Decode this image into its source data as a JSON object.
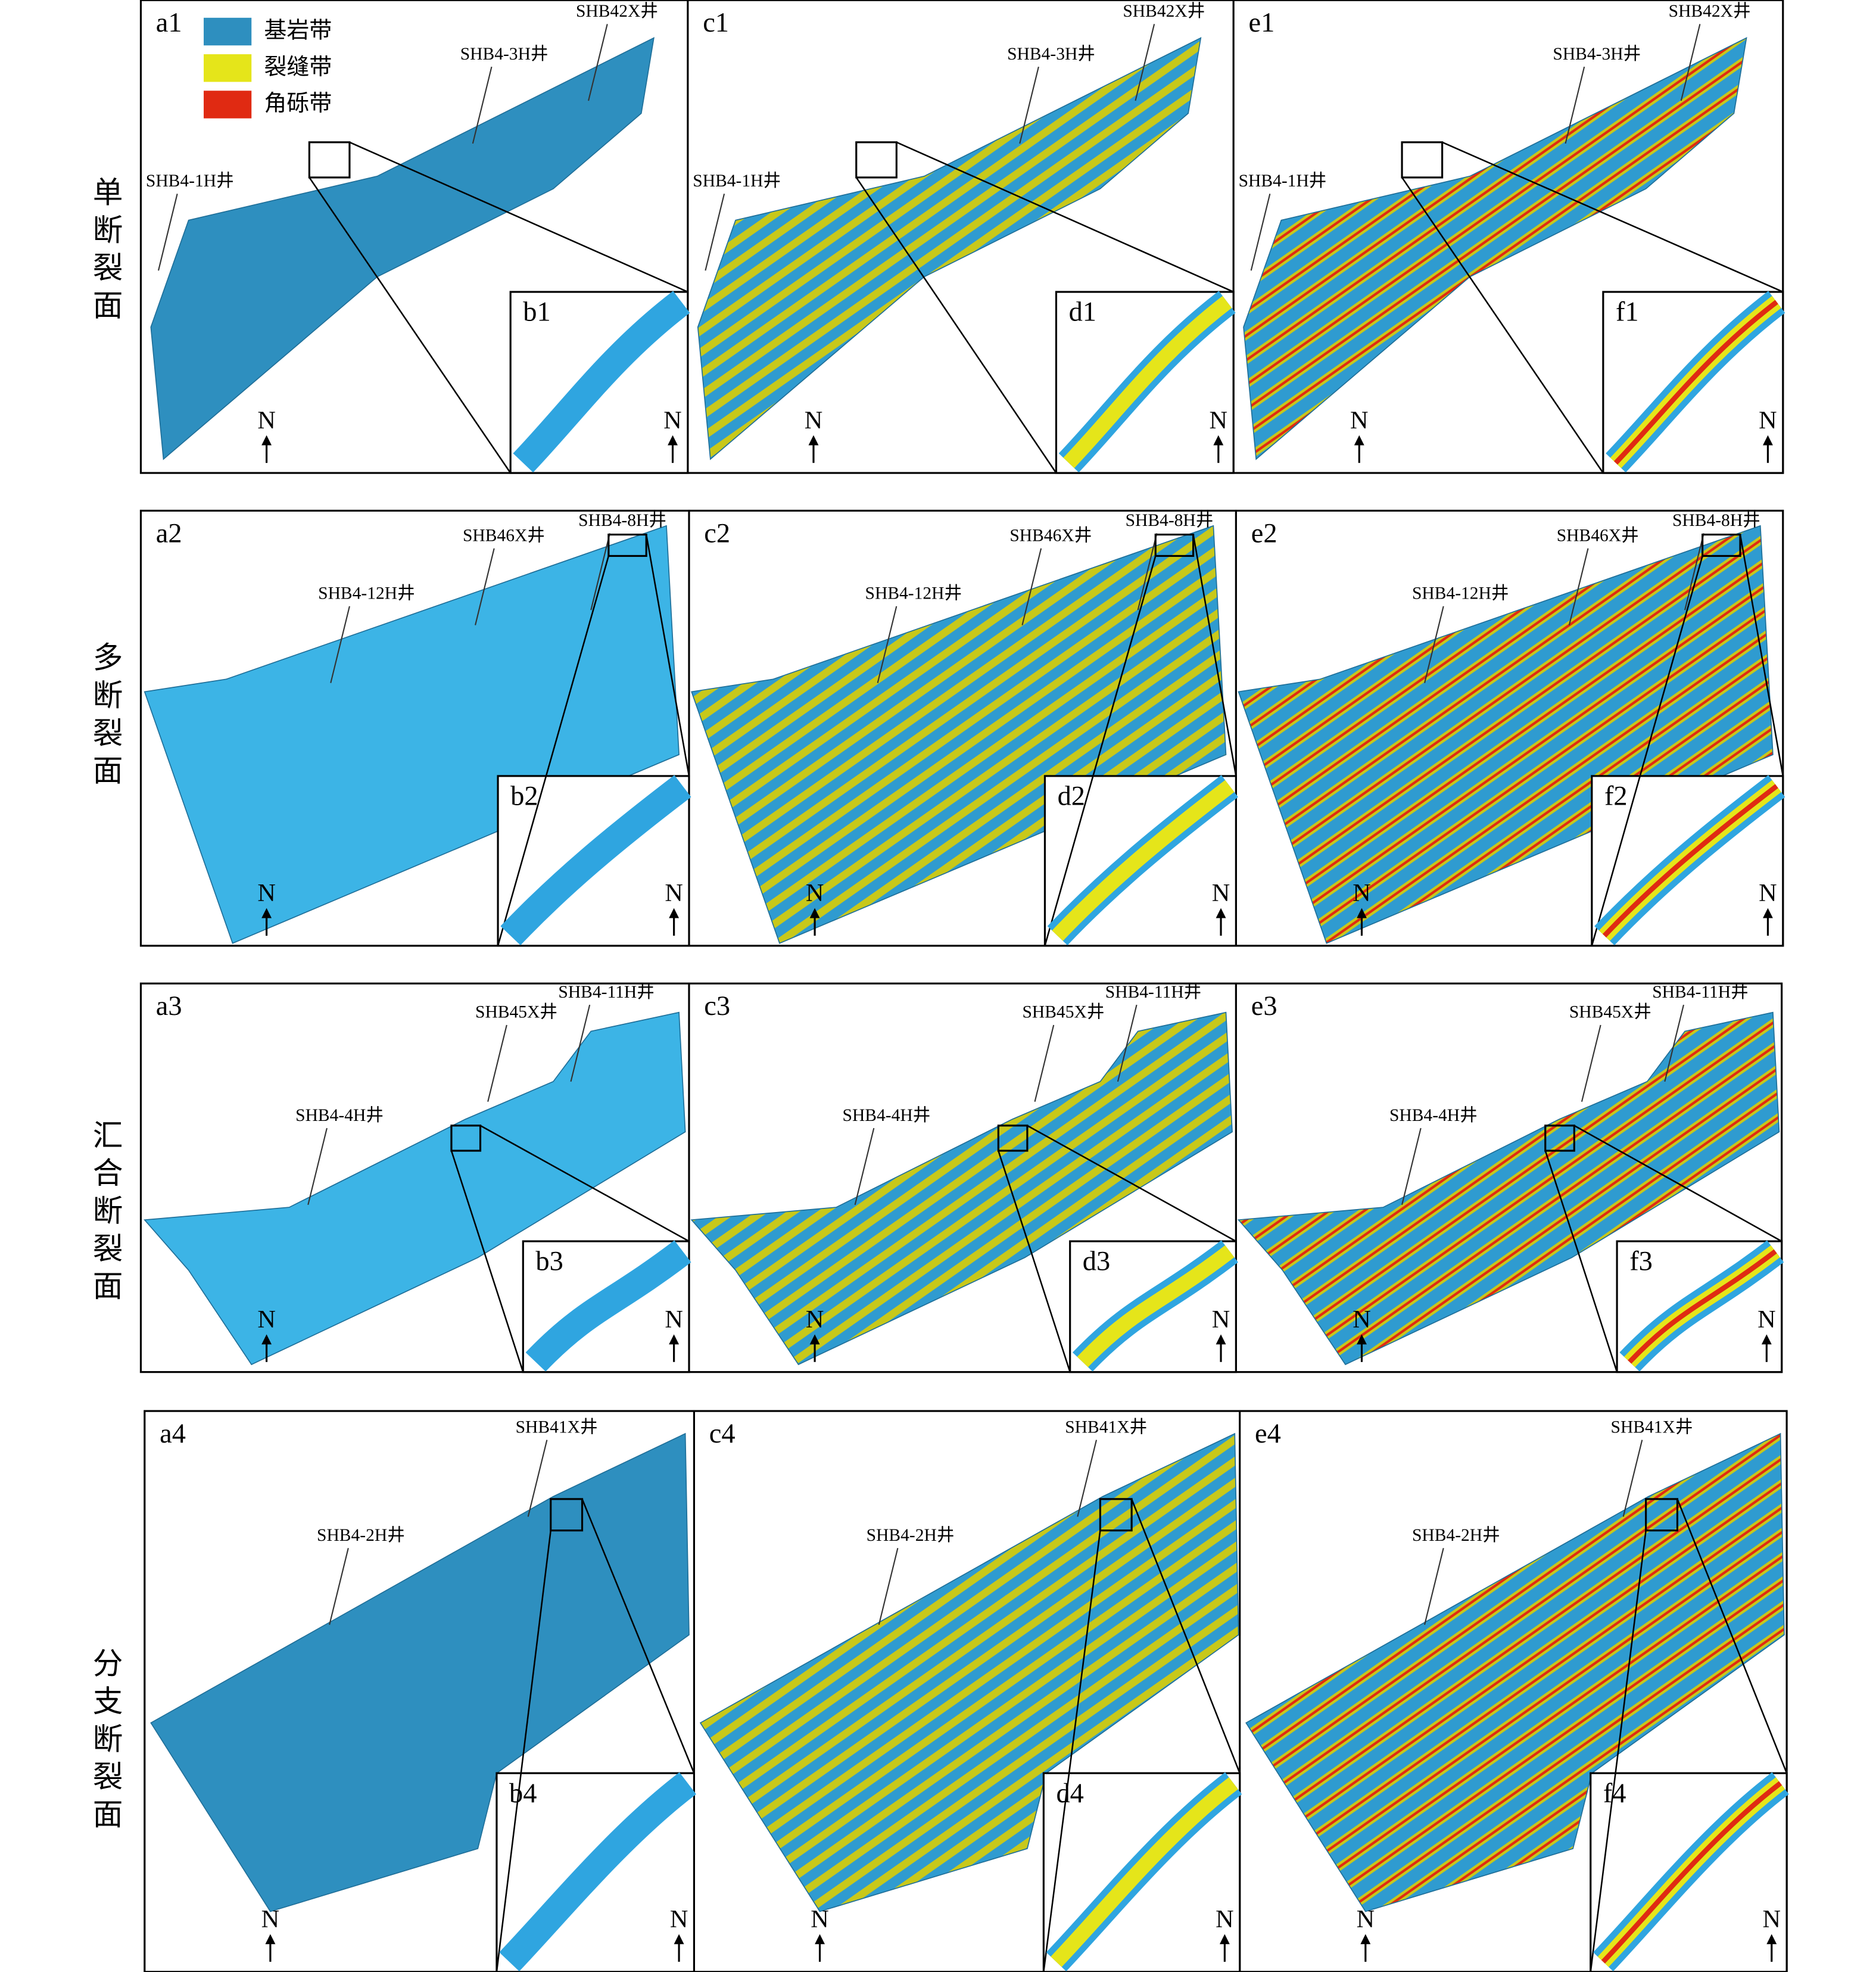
{
  "legend": [
    "基岩带",
    "裂缝带",
    "角砾带"
  ],
  "north": "N",
  "rows": [
    {
      "label": "单断裂面",
      "panels": [
        {
          "label": "a1",
          "wells": [
            "SHB42X井",
            "SHB4-3H井",
            "SHB4-1H井"
          ]
        },
        {
          "label": "c1",
          "wells": [
            "SHB42X井",
            "SHB4-3H井",
            "SHB4-1H井"
          ]
        },
        {
          "label": "e1",
          "wells": [
            "SHB42X井",
            "SHB4-3H井",
            "SHB4-1H井"
          ]
        }
      ],
      "insets": [
        "b1",
        "d1",
        "f1"
      ]
    },
    {
      "label": "多断裂面",
      "panels": [
        {
          "label": "a2",
          "wells": [
            "SHB4-8H井",
            "SHB46X井",
            "SHB4-12H井"
          ]
        },
        {
          "label": "c2",
          "wells": [
            "SHB4-8H井",
            "SHB46X井",
            "SHB4-12H井"
          ]
        },
        {
          "label": "e2",
          "wells": [
            "SHB4-8H井",
            "SHB46X井",
            "SHB4-12H井"
          ]
        }
      ],
      "insets": [
        "b2",
        "d2",
        "f2"
      ]
    },
    {
      "label": "汇合断裂面",
      "panels": [
        {
          "label": "a3",
          "wells": [
            "SHB4-11H井",
            "SHB45X井",
            "SHB4-4H井"
          ]
        },
        {
          "label": "c3",
          "wells": [
            "SHB4-11H井",
            "SHB45X井",
            "SHB4-4H井"
          ]
        },
        {
          "label": "e3",
          "wells": [
            "SHB4-11H井",
            "SHB45X井",
            "SHB4-4H井"
          ]
        }
      ],
      "insets": [
        "b3",
        "d3",
        "f3"
      ]
    },
    {
      "label": "分支断裂面",
      "panels": [
        {
          "label": "a4",
          "wells": [
            "SHB41X井",
            "SHB4-2H井"
          ]
        },
        {
          "label": "c4",
          "wells": [
            "SHB41X井",
            "SHB4-2H井"
          ]
        },
        {
          "label": "e4",
          "wells": [
            "SHB41X井",
            "SHB4-2H井"
          ]
        }
      ],
      "insets": [
        "b4",
        "d4",
        "f4"
      ]
    }
  ]
}
